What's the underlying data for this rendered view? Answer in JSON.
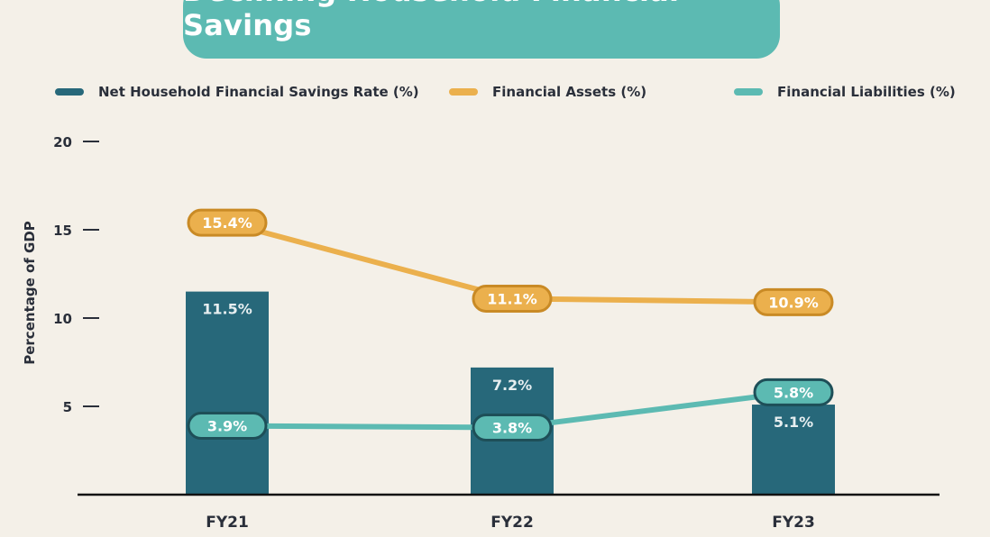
{
  "colors": {
    "background": "#f4f0e8",
    "title_banner": "#5cbab2",
    "savings": "#27687a",
    "assets": "#ebb04d",
    "liabilities": "#5cbab2",
    "text": "#2a2f3a"
  },
  "chart_data": {
    "type": "bar",
    "title": "Declining Household Financial Savings",
    "ylabel": "Percentage of GDP",
    "xlabel": "",
    "ylim": [
      0,
      20
    ],
    "yticks": [
      5,
      10,
      15,
      20
    ],
    "categories": [
      "FY21",
      "FY22",
      "FY23"
    ],
    "legend_position": "top",
    "series": [
      {
        "name": "Net Household Financial Savings Rate (%)",
        "kind": "bar",
        "color": "#27687a",
        "values": [
          11.5,
          7.2,
          5.1
        ],
        "labels": [
          "11.5%",
          "7.2%",
          "5.1%"
        ]
      },
      {
        "name": "Financial Assets (%)",
        "kind": "line",
        "color": "#ebb04d",
        "values": [
          15.4,
          11.1,
          10.9
        ],
        "labels": [
          "15.4%",
          "11.1%",
          "10.9%"
        ]
      },
      {
        "name": "Financial Liabilities (%)",
        "kind": "line",
        "color": "#5cbab2",
        "values": [
          3.9,
          3.8,
          5.8
        ],
        "labels": [
          "3.9%",
          "3.8%",
          "5.8%"
        ]
      }
    ]
  }
}
